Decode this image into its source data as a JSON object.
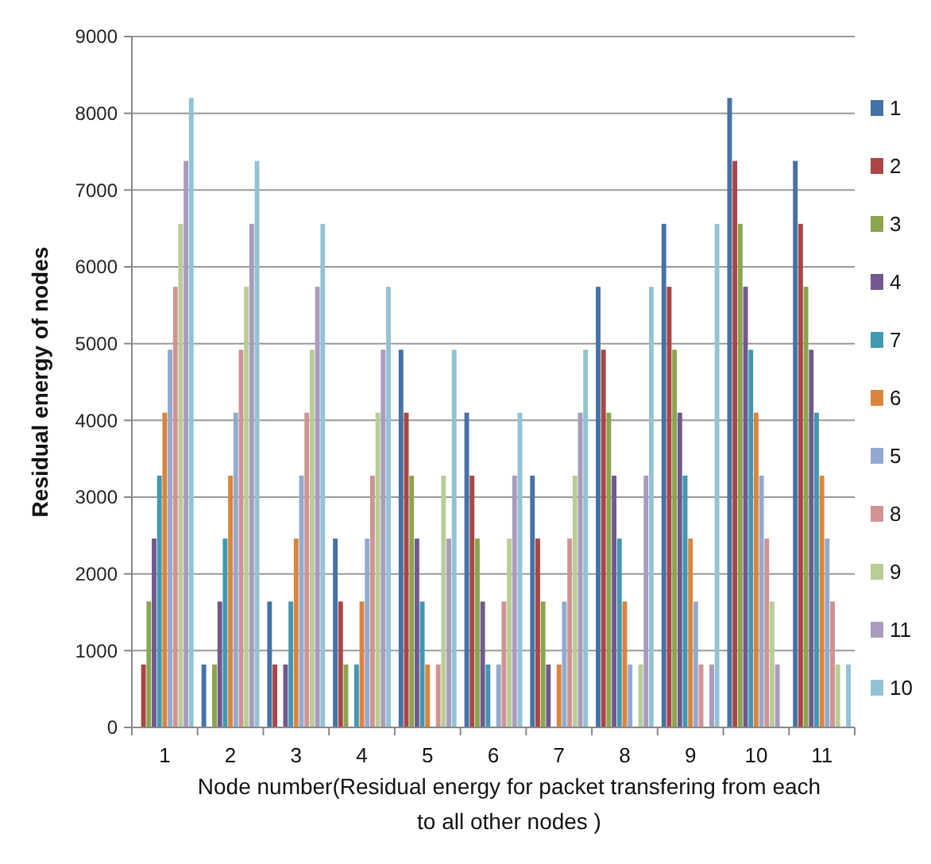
{
  "chart_data": {
    "type": "bar",
    "xlabel": "Node number(Residual energy  for  packet transfering from each to all other nodes )",
    "ylabel": "Residual energy  of nodes",
    "categories": [
      "1",
      "2",
      "3",
      "4",
      "5",
      "6",
      "7",
      "8",
      "9",
      "10",
      "11"
    ],
    "ylim": [
      0,
      9000
    ],
    "yticks": [
      0,
      1000,
      2000,
      3000,
      4000,
      5000,
      6000,
      7000,
      8000,
      9000
    ],
    "grid": "y",
    "legend": "right",
    "series": [
      {
        "name": "1",
        "color": "#4572a7",
        "values": [
          0,
          820,
          1640,
          2460,
          4920,
          4100,
          3280,
          5740,
          6560,
          8200,
          7380
        ]
      },
      {
        "name": "2",
        "color": "#aa4643",
        "values": [
          820,
          0,
          820,
          1640,
          4100,
          3280,
          2460,
          4920,
          5740,
          7380,
          6560
        ]
      },
      {
        "name": "3",
        "color": "#89a54e",
        "values": [
          1640,
          820,
          0,
          820,
          3280,
          2460,
          1640,
          4100,
          4920,
          6560,
          5740
        ]
      },
      {
        "name": "4",
        "color": "#71588f",
        "values": [
          2460,
          1640,
          820,
          0,
          2460,
          1640,
          820,
          3280,
          4100,
          5740,
          4920
        ]
      },
      {
        "name": "7",
        "color": "#4198af",
        "values": [
          3280,
          2460,
          1640,
          820,
          1640,
          820,
          0,
          2460,
          3280,
          4920,
          4100
        ]
      },
      {
        "name": "6",
        "color": "#db843d",
        "values": [
          4100,
          3280,
          2460,
          1640,
          820,
          0,
          820,
          1640,
          2460,
          4100,
          3280
        ]
      },
      {
        "name": "5",
        "color": "#93a9cf",
        "values": [
          4920,
          4100,
          3280,
          2460,
          0,
          820,
          1640,
          820,
          1640,
          3280,
          2460
        ]
      },
      {
        "name": "8",
        "color": "#d19392",
        "values": [
          5740,
          4920,
          4100,
          3280,
          820,
          1640,
          2460,
          0,
          820,
          2460,
          1640
        ]
      },
      {
        "name": "9",
        "color": "#b9cd96",
        "values": [
          6560,
          5740,
          4920,
          4100,
          3280,
          2460,
          3280,
          820,
          0,
          1640,
          820
        ]
      },
      {
        "name": "11",
        "color": "#a99bbd",
        "values": [
          7380,
          6560,
          5740,
          4920,
          2460,
          3280,
          4100,
          3280,
          820,
          820,
          0
        ]
      },
      {
        "name": "10",
        "color": "#92c3d5",
        "values": [
          8200,
          7380,
          6560,
          5740,
          4920,
          4100,
          4920,
          5740,
          6560,
          0,
          820
        ]
      }
    ]
  }
}
